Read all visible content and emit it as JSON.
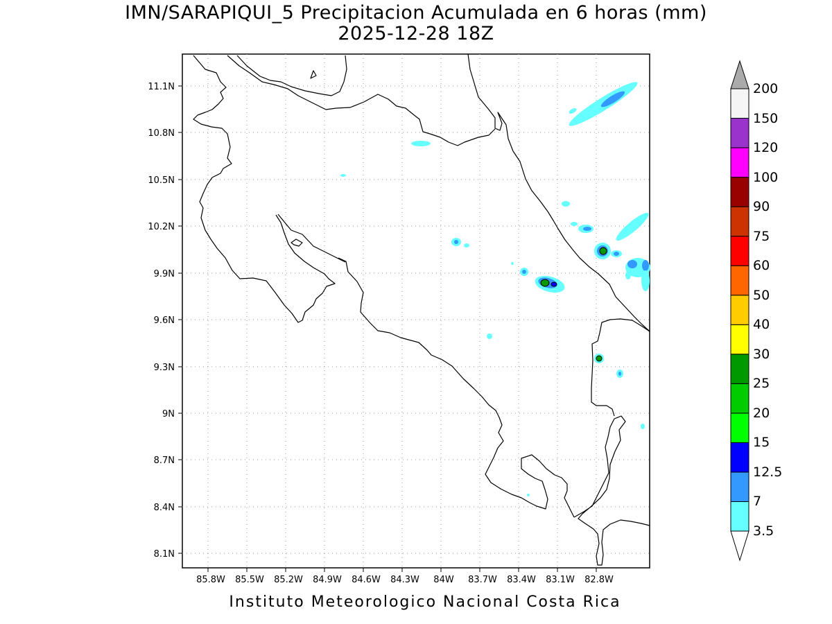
{
  "title": {
    "line1": "IMN/SARAPIQUI_5 Precipitacion Acumulada en 6 horas (mm)",
    "line2": "2025-12-28 18Z"
  },
  "footer": "Instituto Meteorologico Nacional Costa Rica",
  "axes": {
    "lat_ticks": [
      "11.1N",
      "10.8N",
      "10.5N",
      "10.2N",
      "9.9N",
      "9.6N",
      "9.3N",
      "9N",
      "8.7N",
      "8.4N",
      "8.1N"
    ],
    "lon_ticks": [
      "85.8W",
      "85.5W",
      "85.2W",
      "84.9W",
      "84.6W",
      "84.3W",
      "84W",
      "83.7W",
      "83.4W",
      "83.1W",
      "82.8W"
    ],
    "grid": "dotted"
  },
  "colorbar": {
    "levels": [
      "3.5",
      "7",
      "12.5",
      "15",
      "20",
      "25",
      "30",
      "40",
      "50",
      "60",
      "75",
      "90",
      "100",
      "120",
      "150",
      "200"
    ],
    "colors": [
      "#66ffff",
      "#3399ff",
      "#0000ff",
      "#00ff00",
      "#00cc00",
      "#009900",
      "#ffff00",
      "#ffcc00",
      "#ff6600",
      "#ff0000",
      "#cc3300",
      "#990000",
      "#ff00ff",
      "#9933cc",
      "#f5f5f5",
      "#aaaaaa"
    ]
  }
}
